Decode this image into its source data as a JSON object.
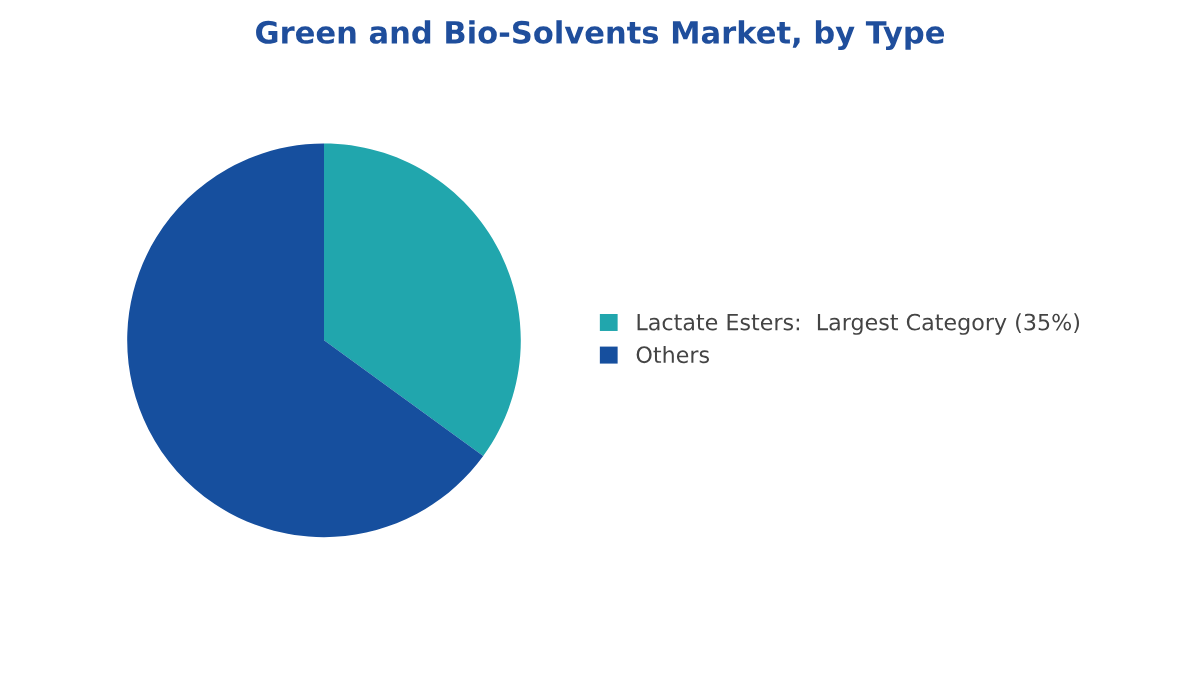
{
  "chart_data": {
    "type": "pie",
    "title": "Green and Bio-Solvents Market, by Type",
    "categories": [
      "Lactate Esters:  Largest Category (35%)",
      "Others"
    ],
    "values": [
      35,
      65
    ],
    "colors": [
      "#21a6ad",
      "#164f9e"
    ],
    "legend": "right"
  }
}
